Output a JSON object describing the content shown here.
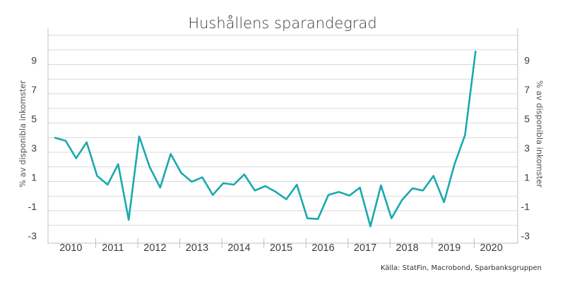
{
  "chart_data": {
    "type": "line",
    "title": "Hushållens sparandegrad",
    "ylabel_left": "% av disponibla inkomster",
    "ylabel_right": "% av disponibla inkomster",
    "source": "Källa: StatFin, Macrobond, Sparbanksgruppen",
    "ylim": [
      -3.5,
      11
    ],
    "yticks": [
      -3,
      -1,
      1,
      3,
      5,
      7,
      9
    ],
    "ytick_labels": [
      "-3",
      "-1",
      "1",
      "3",
      "5",
      "7",
      "9"
    ],
    "grid": true,
    "x_start_year": 2010,
    "x_end_year": 2020.75,
    "x_tick_years": [
      2010,
      2011,
      2012,
      2013,
      2014,
      2015,
      2016,
      2017,
      2018,
      2019,
      2020
    ],
    "x_tick_labels": [
      "2010",
      "2011",
      "2012",
      "2013",
      "2014",
      "2015",
      "2016",
      "2017",
      "2018",
      "2019",
      "2020"
    ],
    "colors": {
      "series": "#1aa9ad"
    },
    "series": [
      {
        "name": "",
        "x": [
          2010.0,
          2010.25,
          2010.5,
          2010.75,
          2011.0,
          2011.25,
          2011.5,
          2011.75,
          2012.0,
          2012.25,
          2012.5,
          2012.75,
          2013.0,
          2013.25,
          2013.5,
          2013.75,
          2014.0,
          2014.25,
          2014.5,
          2014.75,
          2015.0,
          2015.25,
          2015.5,
          2015.75,
          2016.0,
          2016.25,
          2016.5,
          2016.75,
          2017.0,
          2017.25,
          2017.5,
          2017.75,
          2018.0,
          2018.25,
          2018.5,
          2018.75,
          2019.0,
          2019.25,
          2019.5,
          2019.75,
          2020.0,
          2020.25
        ],
        "values": [
          3.7,
          3.5,
          2.3,
          3.4,
          1.1,
          0.5,
          1.9,
          -1.9,
          3.8,
          1.7,
          0.3,
          2.6,
          1.3,
          0.7,
          1.0,
          -0.2,
          0.6,
          0.5,
          1.2,
          0.1,
          0.4,
          0.0,
          -0.5,
          0.5,
          -1.8,
          -1.85,
          -0.2,
          0.0,
          -0.25,
          0.3,
          -2.35,
          0.45,
          -1.8,
          -0.55,
          0.25,
          0.1,
          1.1,
          -0.7,
          1.9,
          3.9,
          9.6,
          null
        ]
      }
    ]
  }
}
